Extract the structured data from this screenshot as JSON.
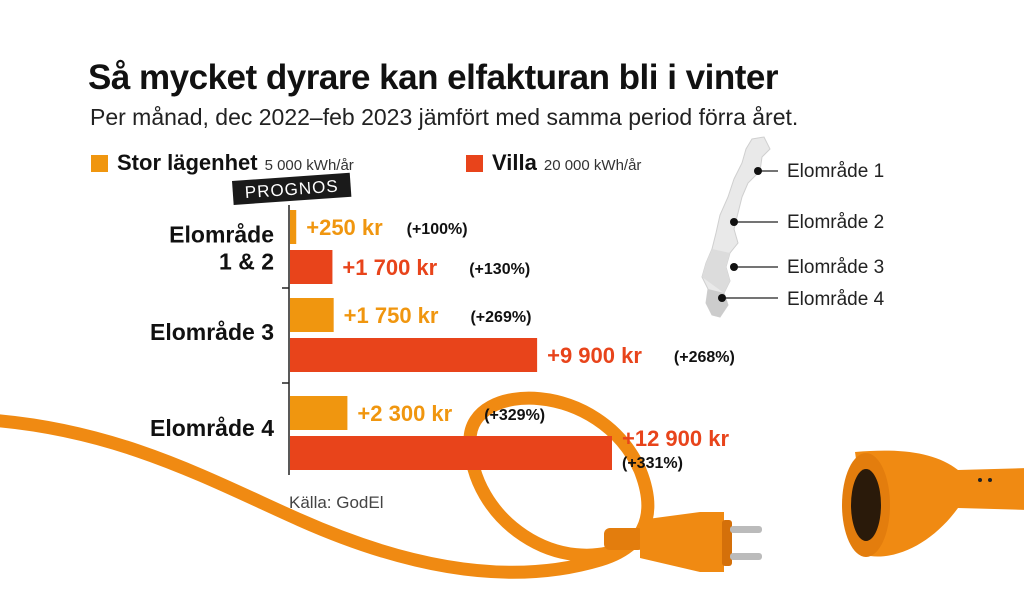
{
  "header": {
    "title": "Så mycket dyrare kan elfakturan bli i vinter",
    "subtitle": "Per månad, dec 2022–feb 2023 jämfört med samma period förra året."
  },
  "legend": [
    {
      "label": "Stor lägenhet",
      "note": "5 000 kWh/år",
      "color": "#f0960f"
    },
    {
      "label": "Villa",
      "note": "20 000 kWh/år",
      "color": "#e8441b"
    }
  ],
  "prognos_tag": "PROGNOS",
  "source": "Källa: GodEl",
  "map": {
    "labels": [
      "Elområde 1",
      "Elområde 2",
      "Elområde 3",
      "Elområde 4"
    ]
  },
  "icons": [
    "sweden-map-icon",
    "power-cable-icon",
    "power-plug-icon",
    "power-socket-icon"
  ],
  "chart_data": {
    "type": "bar",
    "orientation": "horizontal",
    "categories": [
      "Elområde 1 & 2",
      "Elområde 3",
      "Elområde 4"
    ],
    "category_lines": [
      [
        "Elområde",
        "1 & 2"
      ],
      [
        "Elområde 3"
      ],
      [
        "Elområde 4"
      ]
    ],
    "series": [
      {
        "name": "Stor lägenhet",
        "color": "#f0960f",
        "values": [
          250,
          1750,
          2300
        ],
        "value_labels": [
          "+250 kr",
          "+1 750 kr",
          "+2 300 kr"
        ],
        "pct_labels": [
          "(+100%)",
          "(+269%)",
          "(+329%)"
        ]
      },
      {
        "name": "Villa",
        "color": "#e8441b",
        "values": [
          1700,
          9900,
          12900
        ],
        "value_labels": [
          "+1 700 kr",
          "+9 900 kr",
          "+12 900 kr"
        ],
        "pct_labels": [
          "(+130%)",
          "(+268%)",
          "(+331%)"
        ]
      }
    ],
    "xlim": [
      0,
      12900
    ],
    "grid": false,
    "legend_position": "top-left"
  }
}
